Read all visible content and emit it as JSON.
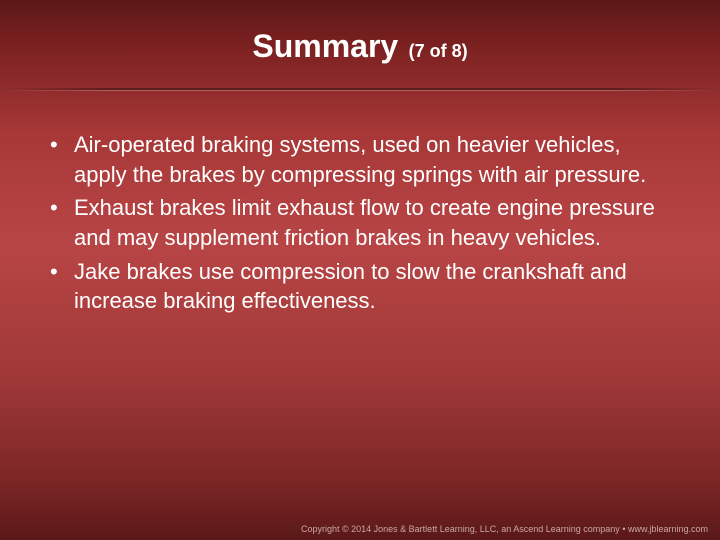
{
  "slide": {
    "title": "Summary",
    "subtitle": "(7 of 8)",
    "title_fontsize": 32,
    "subtitle_fontsize": 18,
    "title_color": "#ffffff",
    "background_gradient": [
      "#5a1818",
      "#7a2020",
      "#a83838",
      "#b84545",
      "#a03838",
      "#7a2525",
      "#5a1818"
    ],
    "divider_color": "rgba(0,0,0,0.35)"
  },
  "bullets": {
    "items": [
      "Air-operated braking systems, used on heavier vehicles, apply the brakes by compressing springs with air pressure.",
      "Exhaust brakes limit exhaust flow to create engine pressure and may supplement friction brakes in heavy vehicles.",
      "Jake brakes use compression to slow the crankshaft and increase braking effectiveness."
    ],
    "fontsize": 22,
    "text_color": "#ffffff",
    "bullet_char": "•"
  },
  "footer": {
    "text": "Copyright © 2014 Jones & Bartlett Learning, LLC, an Ascend Learning company • www.jblearning.com",
    "fontsize": 9,
    "color": "#c9a8a8"
  }
}
